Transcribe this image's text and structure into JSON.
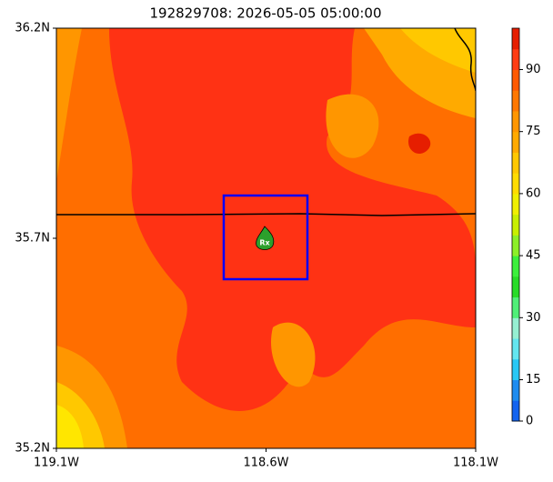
{
  "chart_data": {
    "type": "map",
    "title": "192829708: 2026-05-05 05:00:00",
    "xlim": [
      -119.1,
      -118.1
    ],
    "xticks": [
      {
        "value": -119.1,
        "label": "119.1W"
      },
      {
        "value": -118.6,
        "label": "118.6W"
      },
      {
        "value": -118.1,
        "label": "118.1W"
      }
    ],
    "ylim": [
      35.2,
      36.2
    ],
    "yticks": [
      {
        "value": 35.2,
        "label": "35.2N"
      },
      {
        "value": 35.7,
        "label": "35.7N"
      },
      {
        "value": 36.2,
        "label": "36.2N"
      }
    ],
    "marker_label": "Rx",
    "colorbar": {
      "levels": [
        0,
        7,
        15,
        20,
        25,
        30,
        35,
        40,
        45,
        50,
        55,
        60,
        65,
        70,
        75,
        80,
        85,
        90,
        95,
        100
      ],
      "colors": [
        "#1464f0",
        "#1e8cf0",
        "#28c8f5",
        "#64e6f0",
        "#96f0d2",
        "#50f078",
        "#28dc28",
        "#3cf03c",
        "#8cf028",
        "#c8f000",
        "#f0f000",
        "#ffdc00",
        "#ffc800",
        "#ffaa00",
        "#ff9600",
        "#ff7800",
        "#ff5a00",
        "#ff3c14",
        "#e61e00"
      ],
      "ticks": [
        0,
        15,
        30,
        45,
        60,
        75,
        90
      ]
    }
  }
}
